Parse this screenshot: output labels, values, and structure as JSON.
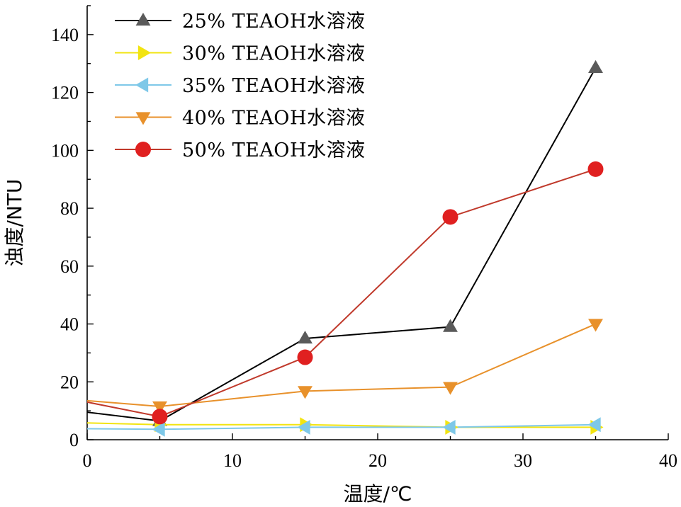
{
  "chart_data": {
    "type": "line",
    "xlabel": "温度/℃",
    "ylabel": "浊度/NTU",
    "xlim": [
      0,
      40
    ],
    "ylim": [
      0,
      150
    ],
    "x_ticks": [
      0,
      10,
      20,
      30,
      40
    ],
    "y_ticks": [
      0,
      20,
      40,
      60,
      80,
      100,
      120,
      140
    ],
    "grid": false,
    "legend_position": "top-left",
    "series": [
      {
        "name": "25% TEAOH水溶液",
        "color": "#000000",
        "marker_color": "#5a5a5a",
        "marker": "triangle-up",
        "x": [
          0,
          5,
          15,
          25,
          35
        ],
        "y": [
          9.5,
          6.5,
          35,
          39,
          128.5
        ]
      },
      {
        "name": "30% TEAOH水溶液",
        "color": "#f2e411",
        "marker_color": "#f2e411",
        "marker": "triangle-right",
        "x": [
          0,
          5,
          15,
          25,
          35
        ],
        "y": [
          5.8,
          5.2,
          5.2,
          4.3,
          4.3
        ]
      },
      {
        "name": "35% TEAOH水溶液",
        "color": "#7ec8e8",
        "marker_color": "#7ec8e8",
        "marker": "triangle-left",
        "x": [
          0,
          5,
          15,
          25,
          35
        ],
        "y": [
          3.8,
          3.6,
          4.3,
          4.3,
          5.2
        ]
      },
      {
        "name": "40% TEAOH水溶液",
        "color": "#e8912b",
        "marker_color": "#e8912b",
        "marker": "triangle-down",
        "x": [
          0,
          5,
          15,
          25,
          35
        ],
        "y": [
          13.5,
          11.5,
          16.8,
          18.2,
          40
        ]
      },
      {
        "name": "50% TEAOH水溶液",
        "color": "#c0392b",
        "marker_color": "#e02020",
        "marker": "circle",
        "x": [
          0,
          5,
          15,
          25,
          35
        ],
        "y": [
          13,
          8,
          28.5,
          77,
          93.5
        ]
      }
    ]
  }
}
